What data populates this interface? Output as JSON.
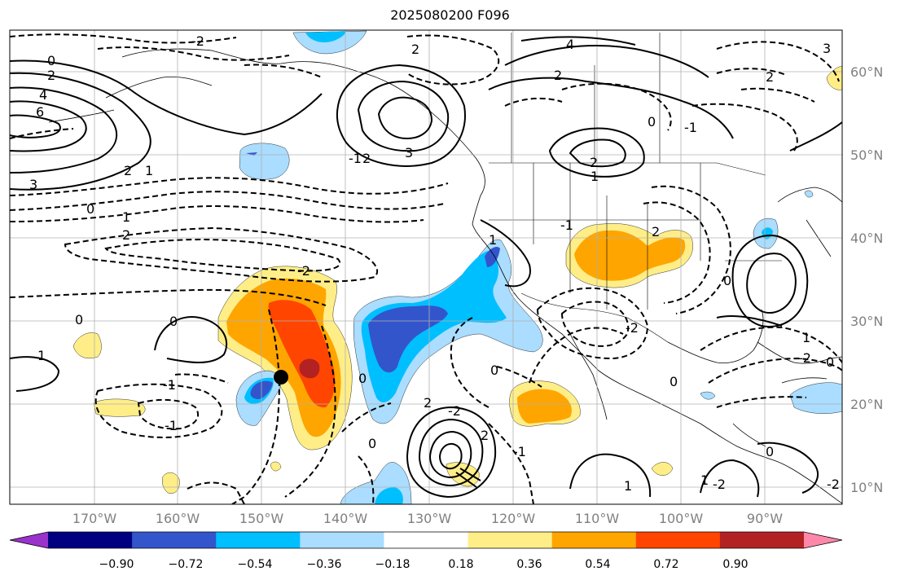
{
  "title": "2025080200 F096",
  "map": {
    "lon_labels": [
      "170°W",
      "160°W",
      "150°W",
      "140°W",
      "130°W",
      "120°W",
      "110°W",
      "100°W",
      "90°W"
    ],
    "lat_labels": [
      "60°N",
      "50°N",
      "40°N",
      "30°N",
      "20°N",
      "10°N"
    ],
    "marker": {
      "type": "black-dot"
    }
  },
  "colorbar": {
    "tick_labels": [
      "−0.90",
      "−0.72",
      "−0.54",
      "−0.36",
      "−0.18",
      "0.18",
      "0.36",
      "0.54",
      "0.72",
      "0.90"
    ],
    "colors": [
      "#9933cc",
      "#000080",
      "#3355cc",
      "#00bfff",
      "#aaddff",
      "#ffffff",
      "#ffee88",
      "#ffa500",
      "#ff4500",
      "#b22222",
      "#ff88aa"
    ]
  },
  "contour_labels": [
    "0",
    "2",
    "4",
    "6",
    "3",
    "2",
    "1",
    "0",
    "1",
    "2",
    "0",
    "1",
    "-2",
    "-2",
    "2",
    "4",
    "3",
    "2",
    "-1",
    "2",
    "0",
    "-1",
    "1",
    "2",
    "3",
    "2",
    "1",
    "-1",
    "2",
    "-2",
    "0",
    "0",
    "1",
    "-2",
    "0",
    "-1",
    "0",
    "-2",
    "2",
    "-1",
    "0",
    "2",
    "0",
    "-1",
    "1",
    "0",
    "1",
    "-2",
    "-2",
    "0"
  ]
}
